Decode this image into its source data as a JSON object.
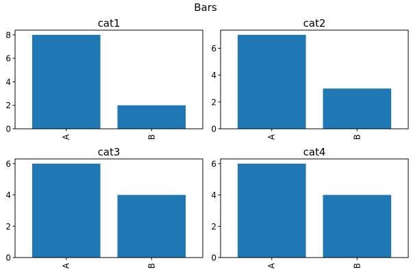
{
  "figure": {
    "title": "Bars"
  },
  "chart_data": [
    {
      "type": "bar",
      "title": "cat1",
      "categories": [
        "A",
        "B"
      ],
      "values": [
        8,
        2
      ],
      "ylim": [
        0,
        8.4
      ],
      "yticks": [
        0,
        2,
        4,
        6,
        8
      ],
      "color": "#1f77b4"
    },
    {
      "type": "bar",
      "title": "cat2",
      "categories": [
        "A",
        "B"
      ],
      "values": [
        7,
        3
      ],
      "ylim": [
        0,
        7.35
      ],
      "yticks": [
        0,
        2,
        4,
        6
      ],
      "color": "#1f77b4"
    },
    {
      "type": "bar",
      "title": "cat3",
      "categories": [
        "A",
        "B"
      ],
      "values": [
        6,
        4
      ],
      "ylim": [
        0,
        6.3
      ],
      "yticks": [
        0,
        2,
        4,
        6
      ],
      "color": "#1f77b4"
    },
    {
      "type": "bar",
      "title": "cat4",
      "categories": [
        "A",
        "B"
      ],
      "values": [
        6,
        4
      ],
      "ylim": [
        0,
        6.3
      ],
      "yticks": [
        0,
        2,
        4,
        6
      ],
      "color": "#1f77b4"
    }
  ]
}
